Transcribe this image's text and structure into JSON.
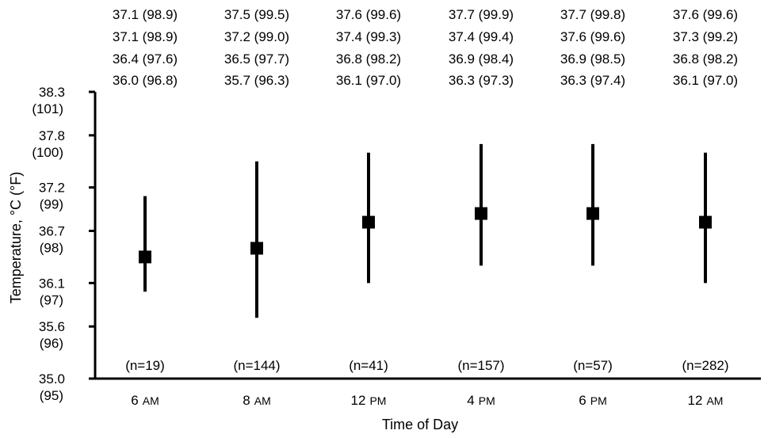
{
  "chart_data": {
    "type": "errorbar",
    "xlabel": "Time of Day",
    "ylabel": "Temperature, °C (°F)",
    "ylim": [
      35.0,
      38.3
    ],
    "y_ticks": [
      {
        "c": "38.3",
        "f": "(101)",
        "value": 38.3
      },
      {
        "c": "37.8",
        "f": "(100)",
        "value": 37.8
      },
      {
        "c": "37.2",
        "f": "(99)",
        "value": 37.2
      },
      {
        "c": "36.7",
        "f": "(98)",
        "value": 36.7
      },
      {
        "c": "36.1",
        "f": "(97)",
        "value": 36.1
      },
      {
        "c": "35.6",
        "f": "(96)",
        "value": 35.6
      },
      {
        "c": "35.0",
        "f": "(95)",
        "value": 35.0
      }
    ],
    "categories": [
      {
        "label": "6",
        "label_suffix": "AM",
        "n": "(n=19)",
        "stats": [
          "37.1 (98.9)",
          "37.1 (98.9)",
          "36.4 (97.6)",
          "36.0 (96.8)"
        ],
        "max": 37.1,
        "mean": 36.4,
        "min": 36.0
      },
      {
        "label": "8",
        "label_suffix": "AM",
        "n": "(n=144)",
        "stats": [
          "37.5 (99.5)",
          "37.2 (99.0)",
          "36.5 (97.7)",
          "35.7 (96.3)"
        ],
        "max": 37.5,
        "mean": 36.5,
        "min": 35.7
      },
      {
        "label": "12",
        "label_suffix": "PM",
        "n": "(n=41)",
        "stats": [
          "37.6 (99.6)",
          "37.4 (99.3)",
          "36.8 (98.2)",
          "36.1 (97.0)"
        ],
        "max": 37.6,
        "mean": 36.8,
        "min": 36.1
      },
      {
        "label": "4",
        "label_suffix": "PM",
        "n": "(n=157)",
        "stats": [
          "37.7 (99.9)",
          "37.4 (99.4)",
          "36.9 (98.4)",
          "36.3 (97.3)"
        ],
        "max": 37.7,
        "mean": 36.9,
        "min": 36.3
      },
      {
        "label": "6",
        "label_suffix": "PM",
        "n": "(n=57)",
        "stats": [
          "37.7 (99.8)",
          "37.6 (99.6)",
          "36.9 (98.5)",
          "36.3 (97.4)"
        ],
        "max": 37.7,
        "mean": 36.9,
        "min": 36.3
      },
      {
        "label": "12",
        "label_suffix": "AM",
        "n": "(n=282)",
        "stats": [
          "37.6 (99.6)",
          "37.3 (99.2)",
          "36.8 (98.2)",
          "36.1 (97.0)"
        ],
        "max": 37.6,
        "mean": 36.8,
        "min": 36.1
      }
    ]
  }
}
